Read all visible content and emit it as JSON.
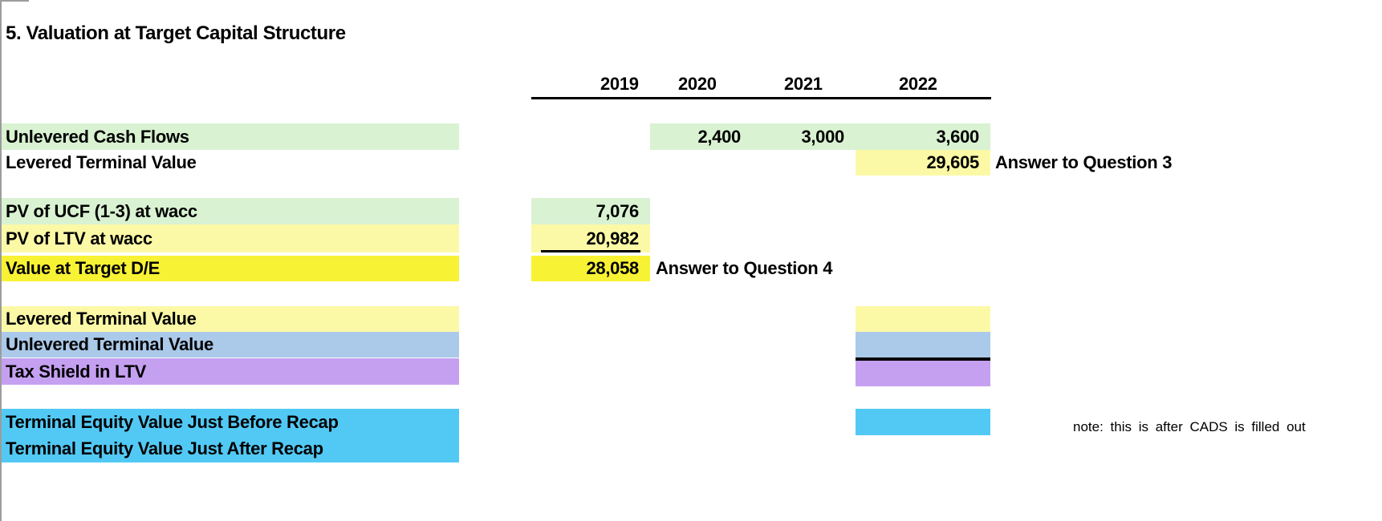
{
  "title": "5. Valuation at Target Capital Structure",
  "header": {
    "years": [
      "2019",
      "2020",
      "2021",
      "2022"
    ]
  },
  "rows": {
    "unlevered_cash_flows": {
      "label": "Unlevered Cash Flows",
      "values": {
        "y2020": "2,400",
        "y2021": "3,000",
        "y2022": "3,600"
      }
    },
    "levered_terminal_value": {
      "label": "Levered Terminal Value",
      "value_2022": "29,605",
      "annotation": "Answer to Question 3"
    },
    "pv_of_ucf": {
      "label": "PV of UCF (1-3) at wacc",
      "value_2019": "7,076"
    },
    "pv_of_ltv": {
      "label": "PV of LTV at wacc",
      "value_2019": "20,982"
    },
    "value_at_target_de": {
      "label": "Value at Target D/E",
      "value_2019": "28,058",
      "annotation": "Answer to Question 4"
    },
    "levered_terminal_value_2": {
      "label": "Levered Terminal Value"
    },
    "unlevered_terminal_value": {
      "label": "Unlevered Terminal Value"
    },
    "tax_shield_in_ltv": {
      "label": "Tax Shield in LTV"
    },
    "terminal_equity_before_recap": {
      "label": "Terminal Equity Value Just Before Recap"
    },
    "terminal_equity_after_recap": {
      "label": "Terminal Equity Value Just After Recap"
    },
    "note": "note: this is after CADS is filled out"
  },
  "colors": {
    "light_green": "#d9f2d2",
    "pale_yellow": "#fbf9a6",
    "bright_yellow": "#f8f234",
    "light_blue": "#abc9e9",
    "purple": "#c5a0f1",
    "cyan": "#52c9f5",
    "gridline_gray": "#9c9c9c"
  }
}
